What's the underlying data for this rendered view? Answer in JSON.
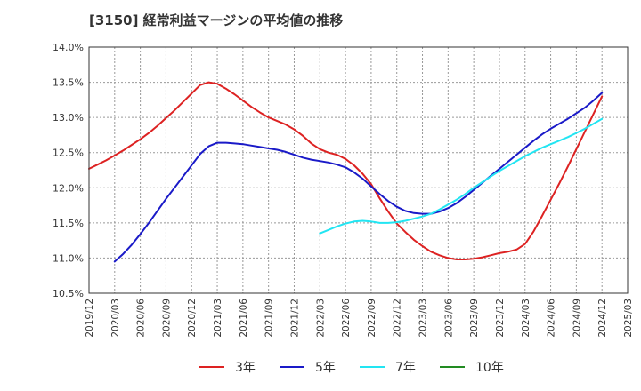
{
  "chart_data": {
    "type": "line",
    "title": "[3150]  経常利益マージンの平均値の推移",
    "x_tick_labels": [
      "2019/12",
      "2020/03",
      "2020/06",
      "2020/09",
      "2020/12",
      "2021/03",
      "2021/06",
      "2021/09",
      "2021/12",
      "2022/03",
      "2022/06",
      "2022/09",
      "2022/12",
      "2023/03",
      "2023/06",
      "2023/09",
      "2023/12",
      "2024/03",
      "2024/06",
      "2024/09",
      "2024/12",
      "2025/03"
    ],
    "y_tick_labels": [
      "10.5%",
      "11.0%",
      "11.5%",
      "12.0%",
      "12.5%",
      "13.0%",
      "13.5%",
      "14.0%"
    ],
    "y_ticks": [
      10.5,
      11.0,
      11.5,
      12.0,
      12.5,
      13.0,
      13.5,
      14.0
    ],
    "ylim": [
      10.5,
      14.0
    ],
    "grid": true,
    "legend_position": "bottom",
    "series": [
      {
        "name": "3年",
        "color": "#dd2222",
        "x": [
          "2019/12",
          "2020/01",
          "2020/02",
          "2020/03",
          "2020/04",
          "2020/05",
          "2020/06",
          "2020/07",
          "2020/08",
          "2020/09",
          "2020/10",
          "2020/11",
          "2020/12",
          "2021/01",
          "2021/02",
          "2021/03",
          "2021/04",
          "2021/05",
          "2021/06",
          "2021/07",
          "2021/08",
          "2021/09",
          "2021/10",
          "2021/11",
          "2021/12",
          "2022/01",
          "2022/02",
          "2022/03",
          "2022/04",
          "2022/05",
          "2022/06",
          "2022/07",
          "2022/08",
          "2022/09",
          "2022/10",
          "2022/11",
          "2022/12",
          "2023/01",
          "2023/02",
          "2023/03",
          "2023/04",
          "2023/05",
          "2023/06",
          "2023/07",
          "2023/08",
          "2023/09",
          "2023/10",
          "2023/11",
          "2023/12",
          "2024/01",
          "2024/02",
          "2024/03",
          "2024/04",
          "2024/05",
          "2024/06",
          "2024/07",
          "2024/08",
          "2024/09",
          "2024/10",
          "2024/11",
          "2024/12"
        ],
        "values": [
          12.27,
          12.33,
          12.39,
          12.46,
          12.53,
          12.61,
          12.69,
          12.78,
          12.88,
          12.99,
          13.1,
          13.22,
          13.34,
          13.46,
          13.5,
          13.48,
          13.41,
          13.33,
          13.24,
          13.15,
          13.07,
          13.0,
          12.95,
          12.9,
          12.83,
          12.74,
          12.63,
          12.55,
          12.5,
          12.47,
          12.41,
          12.32,
          12.2,
          12.05,
          11.85,
          11.66,
          11.49,
          11.37,
          11.26,
          11.17,
          11.09,
          11.04,
          11.0,
          10.98,
          10.98,
          10.99,
          11.01,
          11.04,
          11.07,
          11.09,
          11.12,
          11.2,
          11.38,
          11.6,
          11.83,
          12.06,
          12.3,
          12.55,
          12.8,
          13.05,
          13.3
        ]
      },
      {
        "name": "5年",
        "color": "#1a1ac8",
        "x": [
          "2020/03",
          "2020/04",
          "2020/05",
          "2020/06",
          "2020/07",
          "2020/08",
          "2020/09",
          "2020/10",
          "2020/11",
          "2020/12",
          "2021/01",
          "2021/02",
          "2021/03",
          "2021/04",
          "2021/05",
          "2021/06",
          "2021/07",
          "2021/08",
          "2021/09",
          "2021/10",
          "2021/11",
          "2021/12",
          "2022/01",
          "2022/02",
          "2022/03",
          "2022/04",
          "2022/05",
          "2022/06",
          "2022/07",
          "2022/08",
          "2022/09",
          "2022/10",
          "2022/11",
          "2022/12",
          "2023/01",
          "2023/02",
          "2023/03",
          "2023/04",
          "2023/05",
          "2023/06",
          "2023/07",
          "2023/08",
          "2023/09",
          "2023/10",
          "2023/11",
          "2023/12",
          "2024/01",
          "2024/02",
          "2024/03",
          "2024/04",
          "2024/05",
          "2024/06",
          "2024/07",
          "2024/08",
          "2024/09",
          "2024/10",
          "2024/11",
          "2024/12"
        ],
        "values": [
          10.95,
          11.06,
          11.19,
          11.34,
          11.5,
          11.67,
          11.84,
          12.0,
          12.16,
          12.32,
          12.48,
          12.59,
          12.64,
          12.64,
          12.63,
          12.62,
          12.6,
          12.58,
          12.56,
          12.54,
          12.51,
          12.47,
          12.43,
          12.4,
          12.38,
          12.36,
          12.33,
          12.29,
          12.22,
          12.13,
          12.02,
          11.91,
          11.81,
          11.73,
          11.67,
          11.64,
          11.63,
          11.63,
          11.66,
          11.71,
          11.78,
          11.87,
          11.97,
          12.07,
          12.17,
          12.27,
          12.37,
          12.47,
          12.57,
          12.67,
          12.76,
          12.84,
          12.91,
          12.98,
          13.06,
          13.14,
          13.24,
          13.35
        ]
      },
      {
        "name": "7年",
        "color": "#22e5f2",
        "x": [
          "2022/03",
          "2022/04",
          "2022/05",
          "2022/06",
          "2022/07",
          "2022/08",
          "2022/09",
          "2022/10",
          "2022/11",
          "2022/12",
          "2023/01",
          "2023/02",
          "2023/03",
          "2023/04",
          "2023/05",
          "2023/06",
          "2023/07",
          "2023/08",
          "2023/09",
          "2023/10",
          "2023/11",
          "2023/12",
          "2024/01",
          "2024/02",
          "2024/03",
          "2024/04",
          "2024/05",
          "2024/06",
          "2024/07",
          "2024/08",
          "2024/09",
          "2024/10",
          "2024/11",
          "2024/12"
        ],
        "values": [
          11.35,
          11.4,
          11.45,
          11.49,
          11.52,
          11.53,
          11.52,
          11.5,
          11.5,
          11.51,
          11.53,
          11.56,
          11.59,
          11.63,
          11.69,
          11.76,
          11.83,
          11.91,
          12.0,
          12.08,
          12.16,
          12.24,
          12.31,
          12.38,
          12.45,
          12.51,
          12.57,
          12.62,
          12.67,
          12.72,
          12.78,
          12.84,
          12.91,
          12.98
        ]
      },
      {
        "name": "10年",
        "color": "#228b22",
        "x": [],
        "values": []
      }
    ]
  }
}
